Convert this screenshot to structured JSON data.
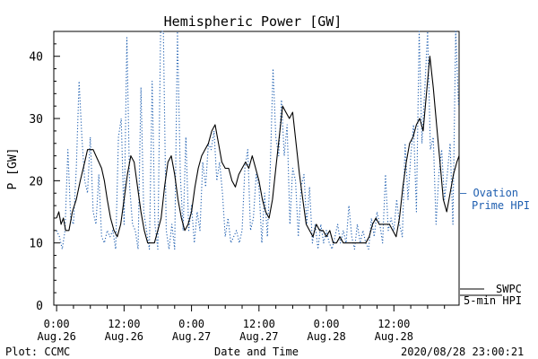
{
  "chart_data": {
    "type": "line",
    "title": "Hemispheric Power [GW]",
    "xlabel": "Date and Time",
    "ylabel": "P [GW]",
    "ylim": [
      0,
      44
    ],
    "xlim": [
      -0.5,
      71.6
    ],
    "yticks": [
      0,
      10,
      20,
      30,
      40
    ],
    "xticks": [
      {
        "x": 0,
        "time": "0:00",
        "date": "Aug.26"
      },
      {
        "x": 12,
        "time": "12:00",
        "date": "Aug.26"
      },
      {
        "x": 24,
        "time": "0:00",
        "date": "Aug.27"
      },
      {
        "x": 36,
        "time": "12:00",
        "date": "Aug.27"
      },
      {
        "x": 48,
        "time": "0:00",
        "date": "Aug.28"
      },
      {
        "x": 60,
        "time": "12:00",
        "date": "Aug.28"
      }
    ],
    "x_unit": "hours since 2020-08-26 0:00",
    "series": [
      {
        "name": "SWPC 5-min HPI",
        "color": "#000000",
        "style": "solid",
        "points": [
          [
            0,
            14
          ],
          [
            0.4,
            15
          ],
          [
            0.8,
            13
          ],
          [
            1.2,
            14
          ],
          [
            1.6,
            12
          ],
          [
            2.2,
            12
          ],
          [
            2.8,
            15
          ],
          [
            3.5,
            17
          ],
          [
            4.2,
            20
          ],
          [
            5,
            23
          ],
          [
            5.5,
            25
          ],
          [
            6,
            25
          ],
          [
            6.5,
            25
          ],
          [
            7,
            24
          ],
          [
            7.5,
            23
          ],
          [
            8,
            22
          ],
          [
            8.5,
            20
          ],
          [
            9,
            17
          ],
          [
            9.6,
            14
          ],
          [
            10.2,
            12
          ],
          [
            10.8,
            11
          ],
          [
            11.4,
            13
          ],
          [
            12,
            17
          ],
          [
            12.6,
            21
          ],
          [
            13.2,
            24
          ],
          [
            13.8,
            23
          ],
          [
            14.4,
            19
          ],
          [
            15,
            15
          ],
          [
            15.6,
            12
          ],
          [
            16.2,
            10
          ],
          [
            16.8,
            10
          ],
          [
            17.4,
            10
          ],
          [
            18,
            12
          ],
          [
            18.6,
            14
          ],
          [
            19.2,
            19
          ],
          [
            19.8,
            23
          ],
          [
            20.4,
            24
          ],
          [
            21,
            21
          ],
          [
            21.6,
            17
          ],
          [
            22.2,
            14
          ],
          [
            22.8,
            12
          ],
          [
            23.4,
            13
          ],
          [
            24,
            15
          ],
          [
            24.6,
            19
          ],
          [
            25.2,
            22
          ],
          [
            25.8,
            24
          ],
          [
            26.4,
            25
          ],
          [
            27,
            26
          ],
          [
            27.6,
            28
          ],
          [
            28.2,
            29
          ],
          [
            28.8,
            26
          ],
          [
            29.4,
            23
          ],
          [
            30,
            22
          ],
          [
            30.6,
            22
          ],
          [
            31.2,
            20
          ],
          [
            31.8,
            19
          ],
          [
            32.4,
            21
          ],
          [
            33,
            22
          ],
          [
            33.6,
            23
          ],
          [
            34.2,
            22
          ],
          [
            34.8,
            24
          ],
          [
            35.4,
            22
          ],
          [
            36,
            20
          ],
          [
            36.6,
            17
          ],
          [
            37.2,
            15
          ],
          [
            37.8,
            14
          ],
          [
            38.4,
            17
          ],
          [
            39,
            22
          ],
          [
            39.6,
            27
          ],
          [
            40.2,
            32
          ],
          [
            40.8,
            31
          ],
          [
            41.4,
            30
          ],
          [
            42,
            31
          ],
          [
            42.6,
            26
          ],
          [
            43.2,
            21
          ],
          [
            43.8,
            17
          ],
          [
            44.4,
            13
          ],
          [
            45,
            12
          ],
          [
            45.6,
            11
          ],
          [
            46.2,
            13
          ],
          [
            46.8,
            12
          ],
          [
            47.4,
            12
          ],
          [
            48,
            11
          ],
          [
            48.6,
            12
          ],
          [
            49.2,
            10
          ],
          [
            49.8,
            10
          ],
          [
            50.4,
            11
          ],
          [
            51,
            10
          ],
          [
            52,
            10
          ],
          [
            53,
            10
          ],
          [
            54,
            10
          ],
          [
            55,
            10
          ],
          [
            55.6,
            11
          ],
          [
            56.2,
            13
          ],
          [
            56.8,
            14
          ],
          [
            57.4,
            13
          ],
          [
            58,
            13
          ],
          [
            58.6,
            13
          ],
          [
            59.2,
            13
          ],
          [
            59.8,
            12
          ],
          [
            60.4,
            11
          ],
          [
            61,
            14
          ],
          [
            61.6,
            19
          ],
          [
            62.2,
            23
          ],
          [
            62.8,
            26
          ],
          [
            63.4,
            27
          ],
          [
            64,
            29
          ],
          [
            64.6,
            30
          ],
          [
            65.2,
            28
          ],
          [
            65.8,
            34
          ],
          [
            66.4,
            40
          ],
          [
            67,
            35
          ],
          [
            67.6,
            29
          ],
          [
            68.2,
            23
          ],
          [
            68.8,
            17
          ],
          [
            69.4,
            15
          ],
          [
            70,
            18
          ],
          [
            70.6,
            21
          ],
          [
            71.2,
            23
          ],
          [
            71.6,
            24
          ]
        ]
      },
      {
        "name": "Ovation Prime HPI",
        "color": "#1f5fb0",
        "style": "dotted",
        "points": [
          [
            0,
            12
          ],
          [
            0.5,
            11
          ],
          [
            1,
            9
          ],
          [
            1.5,
            12
          ],
          [
            2,
            25
          ],
          [
            2.5,
            14
          ],
          [
            3,
            13
          ],
          [
            3.5,
            22
          ],
          [
            4,
            36
          ],
          [
            4.5,
            27
          ],
          [
            5,
            20
          ],
          [
            5.5,
            18
          ],
          [
            6,
            27
          ],
          [
            6.5,
            15
          ],
          [
            7,
            13
          ],
          [
            7.5,
            21
          ],
          [
            8,
            11
          ],
          [
            8.5,
            10
          ],
          [
            9,
            12
          ],
          [
            9.5,
            11
          ],
          [
            10,
            12
          ],
          [
            10.5,
            9
          ],
          [
            11,
            27
          ],
          [
            11.5,
            30
          ],
          [
            12,
            13
          ],
          [
            12.5,
            43
          ],
          [
            13,
            19
          ],
          [
            13.5,
            13
          ],
          [
            14,
            12
          ],
          [
            14.5,
            9
          ],
          [
            15,
            35
          ],
          [
            15.5,
            15
          ],
          [
            16,
            12
          ],
          [
            16.5,
            9
          ],
          [
            17,
            36
          ],
          [
            17.5,
            13
          ],
          [
            18,
            9
          ],
          [
            18.5,
            44
          ],
          [
            19,
            44
          ],
          [
            19.5,
            12
          ],
          [
            20,
            9
          ],
          [
            20.5,
            13
          ],
          [
            21,
            9
          ],
          [
            21.5,
            44
          ],
          [
            22,
            21
          ],
          [
            22.5,
            12
          ],
          [
            23,
            27
          ],
          [
            23.5,
            12
          ],
          [
            24,
            16
          ],
          [
            24.5,
            10
          ],
          [
            25,
            15
          ],
          [
            25.5,
            12
          ],
          [
            26,
            23
          ],
          [
            26.5,
            19
          ],
          [
            27,
            26
          ],
          [
            27.5,
            25
          ],
          [
            28,
            28
          ],
          [
            28.5,
            20
          ],
          [
            29,
            23
          ],
          [
            29.5,
            18
          ],
          [
            30,
            11
          ],
          [
            30.5,
            14
          ],
          [
            31,
            10
          ],
          [
            31.5,
            11
          ],
          [
            32,
            12
          ],
          [
            32.5,
            10
          ],
          [
            33,
            12
          ],
          [
            33.5,
            22
          ],
          [
            34,
            25
          ],
          [
            34.5,
            12
          ],
          [
            35,
            14
          ],
          [
            35.5,
            21
          ],
          [
            36,
            19
          ],
          [
            36.5,
            10
          ],
          [
            37,
            18
          ],
          [
            37.5,
            11
          ],
          [
            38,
            22
          ],
          [
            38.5,
            38
          ],
          [
            39,
            27
          ],
          [
            39.5,
            24
          ],
          [
            40,
            33
          ],
          [
            40.5,
            24
          ],
          [
            41,
            29
          ],
          [
            41.5,
            13
          ],
          [
            42,
            22
          ],
          [
            42.5,
            20
          ],
          [
            43,
            11
          ],
          [
            43.5,
            19
          ],
          [
            44,
            21
          ],
          [
            44.5,
            13
          ],
          [
            45,
            19
          ],
          [
            45.5,
            10
          ],
          [
            46,
            13
          ],
          [
            46.5,
            9
          ],
          [
            47,
            13
          ],
          [
            47.5,
            10
          ],
          [
            48,
            12
          ],
          [
            48.5,
            10
          ],
          [
            49,
            9
          ],
          [
            49.5,
            11
          ],
          [
            50,
            13
          ],
          [
            50.5,
            10
          ],
          [
            51,
            12
          ],
          [
            51.5,
            10
          ],
          [
            52,
            16
          ],
          [
            52.5,
            11
          ],
          [
            53,
            9
          ],
          [
            53.5,
            13
          ],
          [
            54,
            10
          ],
          [
            54.5,
            12
          ],
          [
            55,
            10
          ],
          [
            55.5,
            9
          ],
          [
            56,
            14
          ],
          [
            56.5,
            11
          ],
          [
            57,
            15
          ],
          [
            57.5,
            13
          ],
          [
            58,
            10
          ],
          [
            58.5,
            21
          ],
          [
            59,
            12
          ],
          [
            59.5,
            14
          ],
          [
            60,
            12
          ],
          [
            60.5,
            17
          ],
          [
            61,
            13
          ],
          [
            61.5,
            11
          ],
          [
            62,
            26
          ],
          [
            62.5,
            17
          ],
          [
            63,
            24
          ],
          [
            63.5,
            29
          ],
          [
            64,
            15
          ],
          [
            64.5,
            44
          ],
          [
            65,
            26
          ],
          [
            65.5,
            35
          ],
          [
            66,
            44
          ],
          [
            66.5,
            25
          ],
          [
            67,
            27
          ],
          [
            67.5,
            13
          ],
          [
            68,
            21
          ],
          [
            68.5,
            25
          ],
          [
            69,
            17
          ],
          [
            69.5,
            21
          ],
          [
            70,
            26
          ],
          [
            70.5,
            13
          ],
          [
            71,
            44
          ],
          [
            71.5,
            32
          ]
        ]
      }
    ],
    "legend": [
      {
        "series": "Ovation Prime HPI",
        "line1": "— Ovation",
        "line2": "Prime HPI",
        "color": "#1f5fb0",
        "placement": "right"
      },
      {
        "series": "SWPC 5-min HPI",
        "line1": "SWPC",
        "line2": "5-min HPI",
        "color": "#000000",
        "placement": "bottom-right"
      }
    ],
    "grid": false
  },
  "footer": {
    "left": "Plot: CCMC",
    "right": "2020/08/28 23:00:21"
  }
}
